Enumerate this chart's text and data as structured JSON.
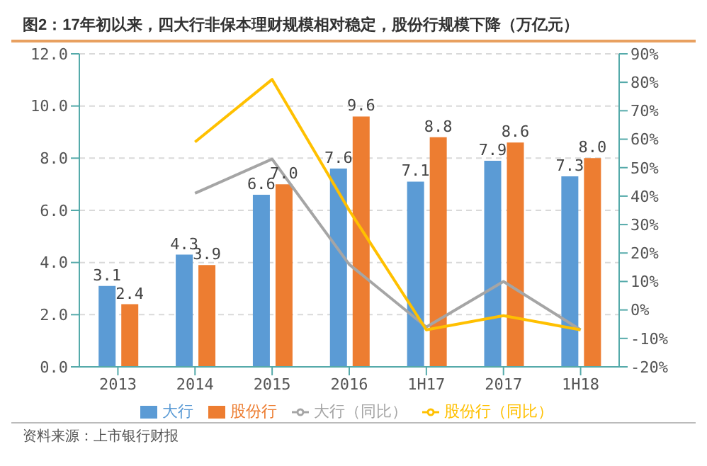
{
  "chart_data": {
    "type": "bar",
    "title": "图2：17年初以来，四大行非保本理财规模相对稳定，股份行规模下降（万亿元）",
    "categories": [
      "2013",
      "2014",
      "2015",
      "2016",
      "1H17",
      "2017",
      "1H18"
    ],
    "series": [
      {
        "name": "大行",
        "color": "#5b9bd5",
        "values": [
          3.1,
          4.3,
          6.6,
          7.6,
          7.1,
          7.9,
          7.3
        ],
        "value_labels": [
          "3.1",
          "4.3",
          "6.6",
          "7.6",
          "7.1",
          "7.9",
          "7.3"
        ]
      },
      {
        "name": "股份行",
        "color": "#ed7d31",
        "values": [
          2.4,
          3.9,
          7.0,
          9.6,
          8.8,
          8.6,
          8.0
        ],
        "value_labels": [
          "2.4",
          "3.9",
          "7.0",
          "9.6",
          "8.8",
          "8.6",
          "8.0"
        ]
      },
      {
        "name": "大行（同比）",
        "type": "line",
        "axis": "y2",
        "color": "#a5a5a5",
        "values": [
          null,
          41,
          53,
          16,
          -6,
          10,
          -7
        ]
      },
      {
        "name": "股份行（同比）",
        "type": "line",
        "axis": "y2",
        "color": "#ffc000",
        "values": [
          null,
          59,
          81,
          35,
          -7,
          -2,
          -7
        ]
      }
    ],
    "ylim": [
      0,
      12
    ],
    "yticks": [
      {
        "value": 0,
        "label": "0.0"
      },
      {
        "value": 2,
        "label": "2.0"
      },
      {
        "value": 4,
        "label": "4.0"
      },
      {
        "value": 6,
        "label": "6.0"
      },
      {
        "value": 8,
        "label": "8.0"
      },
      {
        "value": 10,
        "label": "10.0"
      },
      {
        "value": 12,
        "label": "12.0"
      }
    ],
    "y2lim": [
      -20,
      90
    ],
    "y2ticks": [
      {
        "value": -20,
        "label": "-20%"
      },
      {
        "value": -10,
        "label": "-10%"
      },
      {
        "value": 0,
        "label": "0%"
      },
      {
        "value": 10,
        "label": "10%"
      },
      {
        "value": 20,
        "label": "20%"
      },
      {
        "value": 30,
        "label": "30%"
      },
      {
        "value": 40,
        "label": "40%"
      },
      {
        "value": 50,
        "label": "50%"
      },
      {
        "value": 60,
        "label": "60%"
      },
      {
        "value": 70,
        "label": "70%"
      },
      {
        "value": 80,
        "label": "80%"
      },
      {
        "value": 90,
        "label": "90%"
      }
    ],
    "grid": "y",
    "legend": "bottom",
    "marker": "none",
    "line_style": "solid",
    "annotations": [
      "资料来源：上市银行财报"
    ]
  }
}
